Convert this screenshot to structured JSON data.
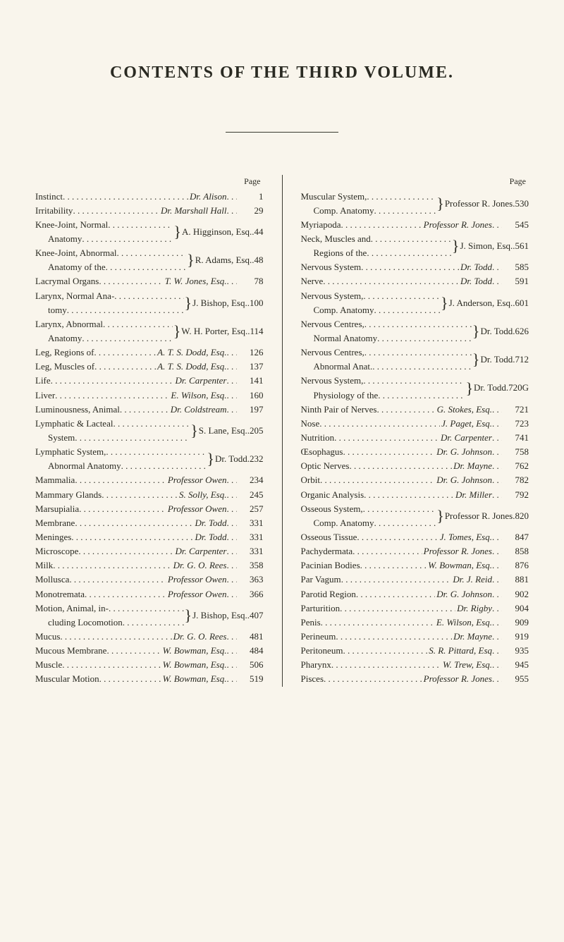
{
  "title": "CONTENTS OF THE THIRD VOLUME.",
  "page_label": "Page",
  "columns": {
    "left": [
      {
        "type": "single",
        "label": "Instinct",
        "author": "Dr. Alison",
        "page": "1"
      },
      {
        "type": "single",
        "label": "Irritability",
        "author": "Dr. Marshall Hall",
        "page": "29"
      },
      {
        "type": "brace2",
        "line1": "Knee-Joint, Normal",
        "line2": "Anatomy",
        "author": "A. Higginson, Esq.",
        "page": "44"
      },
      {
        "type": "brace2",
        "line1": "Knee-Joint, Abnormal",
        "line2": "Anatomy of the",
        "author": "R. Adams, Esq.",
        "page": "48"
      },
      {
        "type": "single",
        "label": "Lacrymal Organs",
        "author": "T. W. Jones, Esq.",
        "page": "78"
      },
      {
        "type": "brace2",
        "line1": "Larynx, Normal Ana-",
        "line2": "tomy",
        "author": "J. Bishop, Esq.",
        "page": "100"
      },
      {
        "type": "brace2",
        "line1": "Larynx, Abnormal",
        "line2": "Anatomy",
        "author": "W. H. Porter, Esq.",
        "page": "114"
      },
      {
        "type": "single",
        "label": "Leg, Regions of",
        "author": "A. T. S. Dodd, Esq.",
        "page": "126"
      },
      {
        "type": "single",
        "label": "Leg, Muscles of",
        "author": "A. T. S. Dodd, Esq.",
        "page": "137"
      },
      {
        "type": "single",
        "label": "Life",
        "author": "Dr. Carpenter",
        "page": "141"
      },
      {
        "type": "single",
        "label": "Liver",
        "author": "E. Wilson, Esq.",
        "page": "160"
      },
      {
        "type": "single",
        "label": "Luminousness, Animal",
        "author": "Dr. Coldstream",
        "page": "197"
      },
      {
        "type": "brace2",
        "line1": "Lymphatic & Lacteal",
        "line2": "System",
        "author": "S. Lane, Esq.",
        "page": "205"
      },
      {
        "type": "brace2",
        "line1": "Lymphatic System,",
        "line2": "Abnormal Anatomy",
        "author": "Dr. Todd",
        "page": "232"
      },
      {
        "type": "single",
        "label": "Mammalia",
        "author": "Professor Owen",
        "page": "234"
      },
      {
        "type": "single",
        "label": "Mammary Glands",
        "author": "S. Solly, Esq.",
        "page": "245"
      },
      {
        "type": "single",
        "label": "Marsupialia",
        "author": "Professor Owen",
        "page": "257"
      },
      {
        "type": "single",
        "label": "Membrane",
        "author": "Dr. Todd",
        "page": "331"
      },
      {
        "type": "single",
        "label": "Meninges",
        "author": "Dr. Todd",
        "page": "331"
      },
      {
        "type": "single",
        "label": "Microscope",
        "author": "Dr. Carpenter",
        "page": "331"
      },
      {
        "type": "single",
        "label": "Milk",
        "author": "Dr. G. O. Rees",
        "page": "358"
      },
      {
        "type": "single",
        "label": "Mollusca",
        "author": "Professor Owen",
        "page": "363"
      },
      {
        "type": "single",
        "label": "Monotremata",
        "author": "Professor Owen",
        "page": "366"
      },
      {
        "type": "brace2",
        "line1": "Motion, Animal, in-",
        "line2": "cluding Locomotion",
        "author": "J. Bishop, Esq.",
        "page": "407"
      },
      {
        "type": "single",
        "label": "Mucus",
        "author": "Dr. G. O. Rees",
        "page": "481"
      },
      {
        "type": "single",
        "label": "Mucous Membrane",
        "author": "W. Bowman, Esq.",
        "page": "484"
      },
      {
        "type": "single",
        "label": "Muscle",
        "author": "W. Bowman, Esq.",
        "page": "506"
      },
      {
        "type": "single",
        "label": "Muscular Motion",
        "author": "W. Bowman, Esq.",
        "page": "519"
      }
    ],
    "right": [
      {
        "type": "brace2",
        "line1": "Muscular System,",
        "line2": "Comp. Anatomy",
        "author": "Professor R. Jones",
        "page": "530"
      },
      {
        "type": "single",
        "label": "Myriapoda",
        "author": "Professor R. Jones",
        "page": "545"
      },
      {
        "type": "brace2",
        "line1": "Neck, Muscles and",
        "line2": "Regions of the",
        "author": "J. Simon, Esq.",
        "page": "561"
      },
      {
        "type": "single",
        "label": "Nervous System",
        "author": "Dr. Todd",
        "page": "585"
      },
      {
        "type": "single",
        "label": "Nerve",
        "author": "Dr. Todd",
        "page": "591"
      },
      {
        "type": "brace2",
        "line1": "Nervous System,",
        "line2": "Comp. Anatomy",
        "author": "J. Anderson, Esq.",
        "page": "601"
      },
      {
        "type": "brace2",
        "line1": "Nervous Centres,",
        "line2": "Normal Anatomy",
        "author": "Dr. Todd",
        "page": "626"
      },
      {
        "type": "brace2",
        "line1": "Nervous Centres,",
        "line2": "Abnormal Anat.",
        "author": "Dr. Todd",
        "page": "712"
      },
      {
        "type": "brace2",
        "line1": "Nervous System,",
        "line2": "Physiology of the",
        "author": "Dr. Todd",
        "page": "720G"
      },
      {
        "type": "single",
        "label": "Ninth Pair of Nerves",
        "author": "G. Stokes, Esq.",
        "page": "721"
      },
      {
        "type": "single",
        "label": "Nose",
        "author": "J. Paget, Esq.",
        "page": "723"
      },
      {
        "type": "single",
        "label": "Nutrition",
        "author": "Dr. Carpenter",
        "page": "741"
      },
      {
        "type": "single",
        "label": "Œsophagus",
        "author": "Dr. G. Johnson",
        "page": "758"
      },
      {
        "type": "single",
        "label": "Optic Nerves",
        "author": "Dr. Mayne",
        "page": "762"
      },
      {
        "type": "single",
        "label": "Orbit",
        "author": "Dr. G. Johnson",
        "page": "782"
      },
      {
        "type": "single",
        "label": "Organic Analysis",
        "author": "Dr. Miller",
        "page": "792"
      },
      {
        "type": "brace2",
        "line1": "Osseous System,",
        "line2": "Comp. Anatomy",
        "author": "Professor R. Jones",
        "page": "820"
      },
      {
        "type": "single",
        "label": "Osseous Tissue",
        "author": "J. Tomes, Esq.",
        "page": "847"
      },
      {
        "type": "single",
        "label": "Pachydermata",
        "author": "Professor R. Jones",
        "page": "858"
      },
      {
        "type": "single",
        "label": "Pacinian Bodies",
        "author": "W. Bowman, Esq.",
        "page": "876"
      },
      {
        "type": "single",
        "label": "Par Vagum",
        "author": "Dr. J. Reid",
        "page": "881"
      },
      {
        "type": "single",
        "label": "Parotid Region",
        "author": "Dr. G. Johnson",
        "page": "902"
      },
      {
        "type": "single",
        "label": "Parturition",
        "author": "Dr. Rigby",
        "page": "904"
      },
      {
        "type": "single",
        "label": "Penis",
        "author": "E. Wilson, Esq.",
        "page": "909"
      },
      {
        "type": "single",
        "label": "Perineum",
        "author": "Dr. Mayne",
        "page": "919"
      },
      {
        "type": "single",
        "label": "Peritoneum",
        "author": "S. R. Pittard, Esq",
        "page": "935"
      },
      {
        "type": "single",
        "label": "Pharynx",
        "author": "W. Trew, Esq.",
        "page": "945"
      },
      {
        "type": "single",
        "label": "Pisces",
        "author": "Professor R. Jones",
        "page": "955"
      }
    ]
  }
}
